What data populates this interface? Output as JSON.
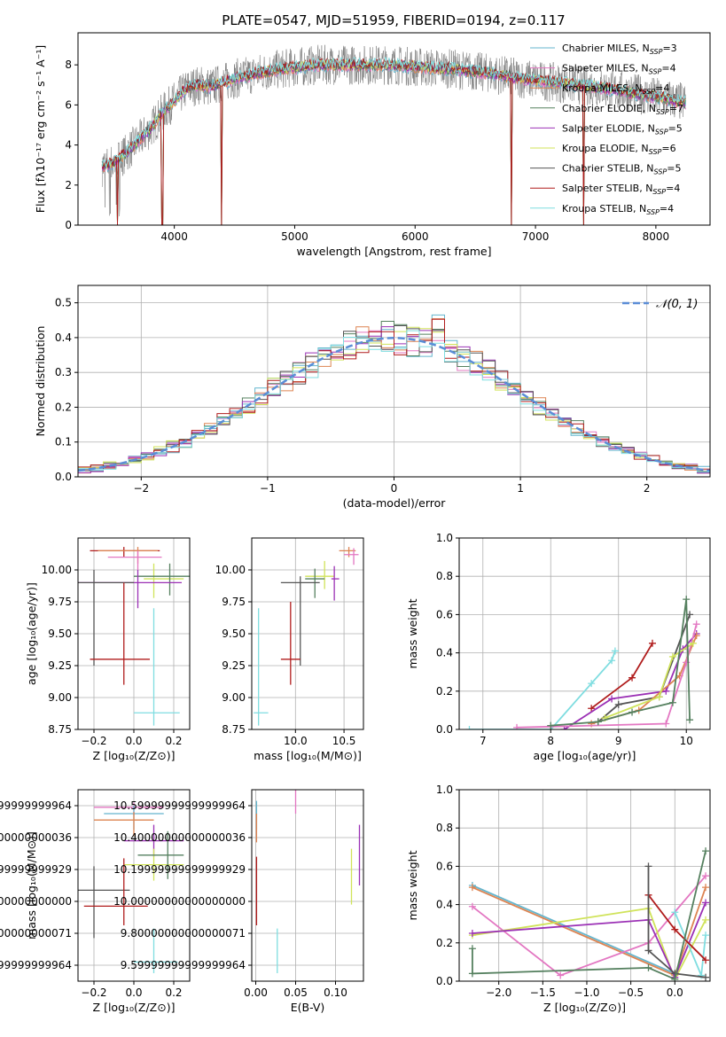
{
  "figure": {
    "title": "PLATE=0547, MJD=51959, FIBERID=0194, z=0.117"
  },
  "chart_data": [
    {
      "id": "spectrum",
      "type": "line",
      "xlabel": "wavelength [Angstrom, rest frame]",
      "ylabel": "Flux [fλ10⁻¹⁷ erg cm⁻² s⁻¹ A⁻¹]",
      "xlim": [
        3200,
        8450
      ],
      "ylim": [
        0,
        9.6
      ],
      "xticks": [
        4000,
        5000,
        6000,
        7000,
        8000
      ],
      "yticks": [
        0,
        2,
        4,
        6,
        8
      ],
      "grid": false,
      "legend_position": "top-right",
      "legend": [
        {
          "label": "Chabrier MILES, N",
          "sub": "SSP",
          "tail": "=3",
          "color": "#64b5cd"
        },
        {
          "label": "Salpeter MILES, N",
          "sub": "SSP",
          "tail": "=4",
          "color": "#e377c2"
        },
        {
          "label": "Kroupa MILES, N",
          "sub": "SSP",
          "tail": "=4",
          "color": "#dd8452"
        },
        {
          "label": "Chabrier ELODIE, N",
          "sub": "SSP",
          "tail": "=7",
          "color": "#55805f"
        },
        {
          "label": "Salpeter ELODIE, N",
          "sub": "SSP",
          "tail": "=5",
          "color": "#9b30b5"
        },
        {
          "label": "Kroupa ELODIE, N",
          "sub": "SSP",
          "tail": "=6",
          "color": "#d0e35a"
        },
        {
          "label": "Chabrier STELIB, N",
          "sub": "SSP",
          "tail": "=5",
          "color": "#555555"
        },
        {
          "label": "Salpeter STELIB, N",
          "sub": "SSP",
          "tail": "=4",
          "color": "#b01c1c"
        },
        {
          "label": "Kroupa STELIB, N",
          "sub": "SSP",
          "tail": "=4",
          "color": "#7fdde0"
        }
      ],
      "continuum": {
        "x": [
          3400,
          3500,
          3600,
          3700,
          3800,
          3900,
          4000,
          4100,
          4200,
          4300,
          4500,
          4700,
          4900,
          5200,
          5500,
          5800,
          6000,
          6300,
          6600,
          6900,
          7200,
          7500,
          7800,
          8100,
          8250
        ],
        "y": [
          2.9,
          3.1,
          3.6,
          4.2,
          4.8,
          5.6,
          6.2,
          6.8,
          7.0,
          6.9,
          7.3,
          7.6,
          7.8,
          8.0,
          8.0,
          8.0,
          7.9,
          7.8,
          7.6,
          7.3,
          7.1,
          6.9,
          6.6,
          6.3,
          6.1
        ]
      },
      "dips": [
        {
          "x": 3530,
          "y": 0
        },
        {
          "x": 3900,
          "y": 0
        },
        {
          "x": 4390,
          "y": 0
        },
        {
          "x": 6800,
          "y": 0
        },
        {
          "x": 7400,
          "y": 0
        }
      ]
    },
    {
      "id": "residuals",
      "type": "histogram",
      "xlabel": "(data-model)/error",
      "ylabel": "Normed distribution",
      "xlim": [
        -2.5,
        2.5
      ],
      "ylim": [
        0,
        0.55
      ],
      "xticks": [
        -2,
        -1,
        0,
        1,
        2
      ],
      "yticks": [
        0.0,
        0.1,
        0.2,
        0.3,
        0.4,
        0.5
      ],
      "grid": true,
      "legend_position": "top-right",
      "legend": [
        {
          "label": "𝒩(0, 1)",
          "color": "#5a8dd6"
        }
      ],
      "bin_width": 0.1
    },
    {
      "id": "age-vs-Z",
      "type": "errorbar",
      "xlabel": "Z [log₁₀(Z/Z⊙)]",
      "ylabel": "age  [log₁₀(age/yr)]",
      "xlim": [
        -0.28,
        0.28
      ],
      "ylim": [
        8.75,
        10.25
      ],
      "xticks": [
        -0.2,
        0.0,
        0.2
      ],
      "yticks": [
        8.75,
        9.0,
        9.25,
        9.5,
        9.75,
        10.0
      ],
      "grid": true,
      "points": [
        {
          "x": -0.05,
          "y": 10.15,
          "xerr": [
            0.17,
            0.18
          ],
          "yerr": [
            0.05,
            0.03
          ],
          "color": "#b01c1c"
        },
        {
          "x": 0.02,
          "y": 10.15,
          "xerr": [
            0.2,
            0.1
          ],
          "yerr": [
            0.1,
            0.03
          ],
          "color": "#dd8452"
        },
        {
          "x": 0.02,
          "y": 10.1,
          "xerr": [
            0.15,
            0.12
          ],
          "yerr": [
            0.1,
            0.05
          ],
          "color": "#e377c2"
        },
        {
          "x": 0.1,
          "y": 9.93,
          "xerr": [
            0.05,
            0.15
          ],
          "yerr": [
            0.15,
            0.12
          ],
          "color": "#d0e35a"
        },
        {
          "x": 0.18,
          "y": 9.95,
          "xerr": [
            0.18,
            0.1
          ],
          "yerr": [
            0.15,
            0.1
          ],
          "color": "#55805f"
        },
        {
          "x": 0.02,
          "y": 9.9,
          "xerr": [
            0.3,
            0.22
          ],
          "yerr": [
            0.2,
            0.1
          ],
          "color": "#9b30b5"
        },
        {
          "x": -0.2,
          "y": 9.9,
          "xerr": [
            0.1,
            0.2
          ],
          "yerr": [
            0.65,
            0.1
          ],
          "color": "#555555"
        },
        {
          "x": -0.05,
          "y": 9.3,
          "xerr": [
            0.17,
            0.13
          ],
          "yerr": [
            0.2,
            0.6
          ],
          "color": "#b01c1c"
        },
        {
          "x": 0.1,
          "y": 8.88,
          "xerr": [
            0.1,
            0.13
          ],
          "yerr": [
            0.1,
            0.82
          ],
          "color": "#7fdde0"
        }
      ]
    },
    {
      "id": "age-vs-mass",
      "type": "errorbar",
      "xlabel": "mass [log₁₀(M/M⊙)]",
      "ylabel": "",
      "xlim": [
        9.55,
        10.7
      ],
      "ylim": [
        8.75,
        10.25
      ],
      "xticks": [
        10.0,
        10.5
      ],
      "yticks": [
        8.75,
        9.0,
        9.25,
        9.5,
        9.75,
        10.0
      ],
      "grid": true,
      "points": [
        {
          "x": 10.55,
          "y": 10.15,
          "xerr": [
            0.1,
            0.07
          ],
          "yerr": [
            0.05,
            0.03
          ],
          "color": "#dd8452"
        },
        {
          "x": 10.6,
          "y": 10.12,
          "xerr": [
            0.1,
            0.05
          ],
          "yerr": [
            0.08,
            0.05
          ],
          "color": "#e377c2"
        },
        {
          "x": 10.3,
          "y": 9.95,
          "xerr": [
            0.2,
            0.1
          ],
          "yerr": [
            0.1,
            0.12
          ],
          "color": "#d0e35a"
        },
        {
          "x": 10.2,
          "y": 9.93,
          "xerr": [
            0.1,
            0.1
          ],
          "yerr": [
            0.15,
            0.08
          ],
          "color": "#55805f"
        },
        {
          "x": 10.4,
          "y": 9.93,
          "xerr": [
            0.03,
            0.05
          ],
          "yerr": [
            0.17,
            0.1
          ],
          "color": "#9b30b5"
        },
        {
          "x": 10.05,
          "y": 9.9,
          "xerr": [
            0.2,
            0.2
          ],
          "yerr": [
            0.65,
            0.05
          ],
          "color": "#555555"
        },
        {
          "x": 9.95,
          "y": 9.3,
          "xerr": [
            0.1,
            0.1
          ],
          "yerr": [
            0.2,
            0.45
          ],
          "color": "#b01c1c"
        },
        {
          "x": 9.62,
          "y": 8.88,
          "xerr": [
            0.05,
            0.1
          ],
          "yerr": [
            0.1,
            0.82
          ],
          "color": "#7fdde0"
        }
      ]
    },
    {
      "id": "massweight-vs-age",
      "type": "line",
      "xlabel": "age  [log₁₀(age/yr)]",
      "ylabel": "mass weight",
      "xlim": [
        6.65,
        10.35
      ],
      "ylim": [
        0,
        1.0
      ],
      "xticks": [
        7,
        8,
        9,
        10
      ],
      "yticks": [
        0.0,
        0.2,
        0.4,
        0.6,
        0.8,
        1.0
      ],
      "grid": true,
      "series": [
        {
          "color": "#7fdde0",
          "x": [
            6.8,
            8.0,
            8.6,
            8.9,
            8.95
          ],
          "y": [
            0.0,
            0.0,
            0.24,
            0.36,
            0.41
          ]
        },
        {
          "color": "#b01c1c",
          "x": [
            8.6,
            9.2,
            9.5
          ],
          "y": [
            0.11,
            0.27,
            0.45
          ]
        },
        {
          "color": "#9b30b5",
          "x": [
            8.2,
            8.9,
            9.7,
            9.95,
            10.15
          ],
          "y": [
            0.0,
            0.16,
            0.2,
            0.42,
            0.5
          ]
        },
        {
          "color": "#555555",
          "x": [
            8.7,
            9.0,
            9.6,
            10.05
          ],
          "y": [
            0.04,
            0.13,
            0.17,
            0.6
          ]
        },
        {
          "color": "#dd8452",
          "x": [
            8.6,
            9.3,
            9.9,
            10.15
          ],
          "y": [
            0.03,
            0.1,
            0.28,
            0.49
          ]
        },
        {
          "color": "#e377c2",
          "x": [
            7.5,
            9.7,
            10.0,
            10.15
          ],
          "y": [
            0.01,
            0.03,
            0.35,
            0.55
          ]
        },
        {
          "color": "#d0e35a",
          "x": [
            8.8,
            9.6,
            9.8,
            10.1
          ],
          "y": [
            0.06,
            0.17,
            0.38,
            0.45
          ]
        },
        {
          "color": "#55805f",
          "x": [
            8.0,
            8.7,
            9.2,
            9.8,
            10.0,
            10.05
          ],
          "y": [
            0.02,
            0.04,
            0.09,
            0.14,
            0.68,
            0.05
          ]
        }
      ]
    },
    {
      "id": "mass-vs-Z",
      "type": "errorbar",
      "xlabel": "Z [log₁₀(Z/Z⊙)]",
      "ylabel": "mass [log₁₀(M/M⊙)]",
      "xlim": [
        -0.28,
        0.28
      ],
      "ylim": [
        9.5,
        10.7
      ],
      "xticks": [
        -0.2,
        0.0,
        0.2
      ],
      "yticks": [
        9.6,
        9.8,
        10.0,
        10.2,
        10.4,
        10.6
      ],
      "grid": true,
      "points": [
        {
          "x": 0.0,
          "y": 10.59,
          "xerr": [
            0.2,
            0.15
          ],
          "yerr": [
            0.05,
            0.03
          ],
          "color": "#e377c2"
        },
        {
          "x": 0.0,
          "y": 10.55,
          "xerr": [
            0.15,
            0.15
          ],
          "yerr": [
            0.1,
            0.05
          ],
          "color": "#64b5cd"
        },
        {
          "x": 0.0,
          "y": 10.51,
          "xerr": [
            0.2,
            0.1
          ],
          "yerr": [
            0.1,
            0.05
          ],
          "color": "#dd8452"
        },
        {
          "x": 0.1,
          "y": 10.38,
          "xerr": [
            0.15,
            0.15
          ],
          "yerr": [
            0.1,
            0.1
          ],
          "color": "#9b30b5"
        },
        {
          "x": 0.1,
          "y": 10.23,
          "xerr": [
            0.15,
            0.15
          ],
          "yerr": [
            0.1,
            0.1
          ],
          "color": "#d0e35a"
        },
        {
          "x": 0.17,
          "y": 10.29,
          "xerr": [
            0.15,
            0.08
          ],
          "yerr": [
            0.15,
            0.15
          ],
          "color": "#55805f"
        },
        {
          "x": -0.2,
          "y": 10.07,
          "xerr": [
            0.08,
            0.18
          ],
          "yerr": [
            0.3,
            0.15
          ],
          "color": "#555555"
        },
        {
          "x": -0.05,
          "y": 9.97,
          "xerr": [
            0.2,
            0.12
          ],
          "yerr": [
            0.12,
            0.3
          ],
          "color": "#b01c1c"
        },
        {
          "x": 0.1,
          "y": 9.62,
          "xerr": [
            0.1,
            0.12
          ],
          "yerr": [
            0.07,
            0.21
          ],
          "color": "#7fdde0"
        }
      ]
    },
    {
      "id": "mass-vs-EBV",
      "type": "errorbar",
      "xlabel": "E(B-V)",
      "ylabel": "",
      "xlim": [
        -0.005,
        0.135
      ],
      "ylim": [
        9.5,
        10.7
      ],
      "xticks": [
        0.0,
        0.05,
        0.1
      ],
      "yticks": [
        9.6,
        9.8,
        10.0,
        10.2,
        10.4,
        10.6
      ],
      "grid": true,
      "points": [
        {
          "x": 0.001,
          "y": 10.55,
          "yerr": [
            0.1,
            0.08
          ],
          "color": "#64b5cd"
        },
        {
          "x": 0.001,
          "y": 10.47,
          "yerr": [
            0.1,
            0.08
          ],
          "color": "#dd8452"
        },
        {
          "x": 0.001,
          "y": 10.05,
          "yerr": [
            0.2,
            0.23
          ],
          "color": "#b01c1c"
        },
        {
          "x": 0.05,
          "y": 10.6,
          "yerr": [
            0.05,
            0.1
          ],
          "color": "#e377c2"
        },
        {
          "x": 0.027,
          "y": 9.69,
          "yerr": [
            0.14,
            0.14
          ],
          "color": "#7fdde0"
        },
        {
          "x": 0.12,
          "y": 10.18,
          "yerr": [
            0.2,
            0.15
          ],
          "color": "#d0e35a"
        },
        {
          "x": 0.13,
          "y": 10.25,
          "yerr": [
            0.15,
            0.23
          ],
          "color": "#9b30b5"
        }
      ]
    },
    {
      "id": "massweight-vs-Z",
      "type": "line",
      "xlabel": "Z [log₁₀(Z/Z⊙)]",
      "ylabel": "mass weight",
      "xlim": [
        -2.45,
        0.4
      ],
      "ylim": [
        0,
        1.0
      ],
      "xticks": [
        -2.0,
        -1.5,
        -1.0,
        -0.5,
        0.0
      ],
      "yticks": [
        0.0,
        0.2,
        0.4,
        0.6,
        0.8,
        1.0
      ],
      "grid": true,
      "series": [
        {
          "color": "#64b5cd",
          "x": [
            -2.3,
            0.0
          ],
          "y": [
            0.5,
            0.04
          ]
        },
        {
          "color": "#dd8452",
          "x": [
            -2.3,
            0.0,
            0.35
          ],
          "y": [
            0.49,
            0.03,
            0.49
          ]
        },
        {
          "color": "#e377c2",
          "x": [
            -2.3,
            -1.3,
            -0.3,
            0.35
          ],
          "y": [
            0.39,
            0.03,
            0.2,
            0.55
          ]
        },
        {
          "color": "#d0e35a",
          "x": [
            -2.3,
            -0.3,
            0.0,
            0.35
          ],
          "y": [
            0.24,
            0.38,
            0.01,
            0.32
          ]
        },
        {
          "color": "#9b30b5",
          "x": [
            -2.3,
            -0.3,
            0.0,
            0.35
          ],
          "y": [
            0.25,
            0.32,
            0.02,
            0.41
          ]
        },
        {
          "color": "#7fdde0",
          "x": [
            0.0,
            0.3,
            0.35
          ],
          "y": [
            0.36,
            0.03,
            0.24
          ]
        },
        {
          "color": "#b01c1c",
          "x": [
            -0.3,
            0.0,
            0.35
          ],
          "y": [
            0.45,
            0.27,
            0.11
          ]
        },
        {
          "color": "#555555",
          "x": [
            -0.3,
            -0.3,
            0.0,
            0.35
          ],
          "y": [
            0.6,
            0.16,
            0.04,
            0.02
          ]
        },
        {
          "color": "#55805f",
          "x": [
            -2.3,
            -2.3,
            -0.3,
            0.0,
            0.35
          ],
          "y": [
            0.17,
            0.04,
            0.07,
            0.01,
            0.68
          ]
        }
      ]
    }
  ]
}
